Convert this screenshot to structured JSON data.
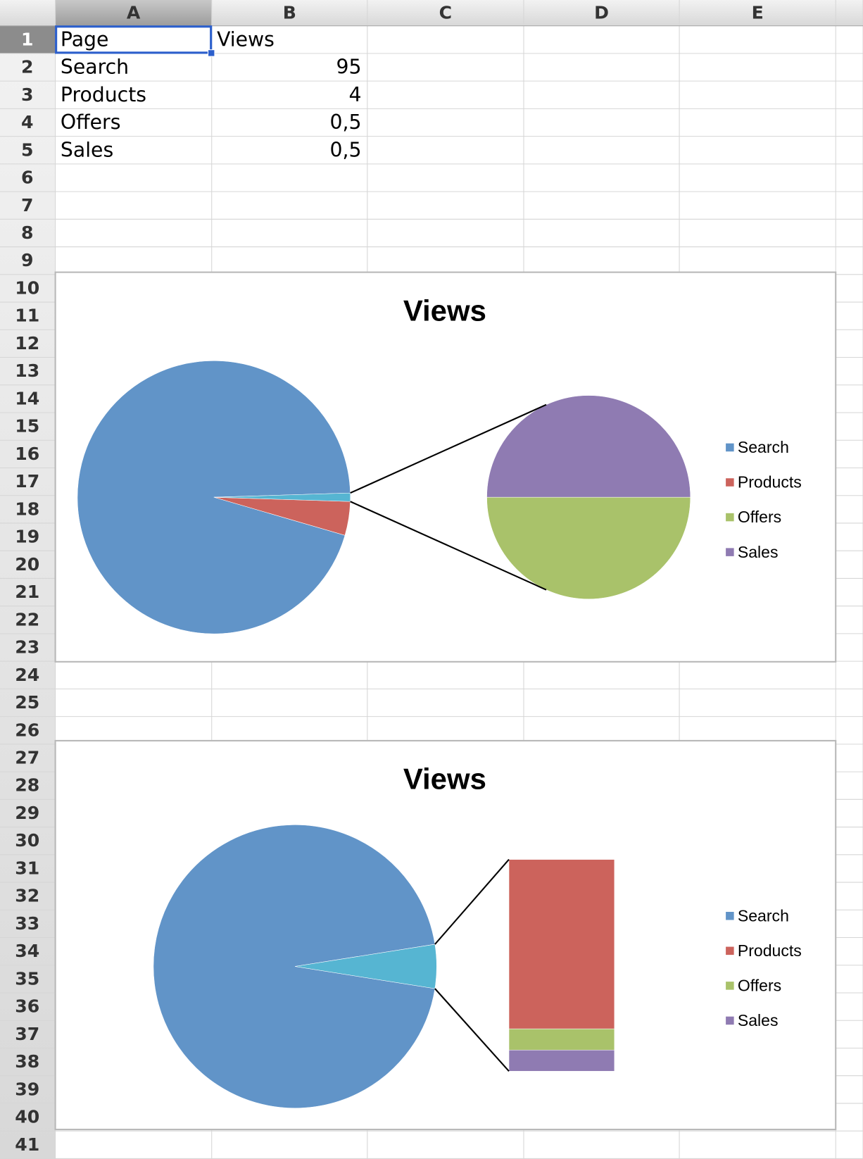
{
  "sheet": {
    "columns": [
      "A",
      "B",
      "C",
      "D",
      "E"
    ],
    "row_numbers": [
      1,
      2,
      3,
      4,
      5,
      6,
      7,
      8,
      9,
      10,
      11,
      12,
      13,
      14,
      15,
      16,
      17,
      18,
      19,
      20,
      21,
      22,
      23,
      24,
      25,
      26,
      27,
      28,
      29,
      30,
      31,
      32,
      33,
      34,
      35,
      36,
      37,
      38,
      39,
      40,
      41
    ],
    "cells": [
      [
        "Page",
        "Views"
      ],
      [
        "Search",
        "95"
      ],
      [
        "Products",
        "4"
      ],
      [
        "Offers",
        "0,5"
      ],
      [
        "Sales",
        "0,5"
      ]
    ]
  },
  "chart_data": [
    {
      "type": "pie-of-pie",
      "title": "Views",
      "categories": [
        "Search",
        "Products",
        "Offers",
        "Sales"
      ],
      "values": [
        95,
        4,
        0.5,
        0.5
      ],
      "colors": [
        "#6194c8",
        "#cc635c",
        "#a9c26a",
        "#8f7bb2"
      ],
      "secondary_count": 2,
      "other_color": "#56b5d2",
      "legend": "right"
    },
    {
      "type": "bar-of-pie",
      "title": "Views",
      "categories": [
        "Search",
        "Products",
        "Offers",
        "Sales"
      ],
      "values": [
        95,
        4,
        0.5,
        0.5
      ],
      "colors": [
        "#6194c8",
        "#cc635c",
        "#a9c26a",
        "#8f7bb2"
      ],
      "secondary_count": 3,
      "other_color": "#56b5d2",
      "legend": "right"
    }
  ]
}
